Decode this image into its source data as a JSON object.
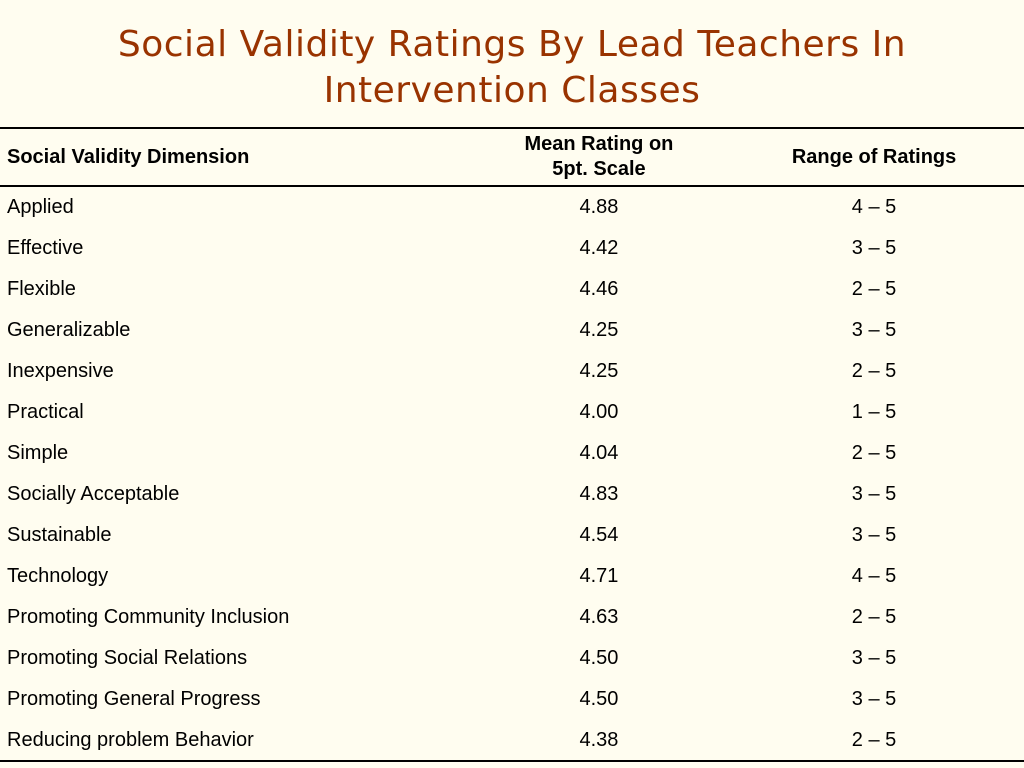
{
  "slide": {
    "title_line1": "Social Validity Ratings By Lead Teachers In",
    "title_line2": "Intervention Classes"
  },
  "table": {
    "headers": {
      "dimension": "Social Validity Dimension",
      "mean_line1": "Mean Rating on",
      "mean_line2": "5pt. Scale",
      "range": "Range of Ratings"
    },
    "rows": [
      {
        "dimension": "Applied",
        "mean": "4.88",
        "range": "4 – 5"
      },
      {
        "dimension": "Effective",
        "mean": "4.42",
        "range": "3 – 5"
      },
      {
        "dimension": "Flexible",
        "mean": "4.46",
        "range": "2 – 5"
      },
      {
        "dimension": "Generalizable",
        "mean": "4.25",
        "range": "3 – 5"
      },
      {
        "dimension": "Inexpensive",
        "mean": "4.25",
        "range": "2 – 5"
      },
      {
        "dimension": "Practical",
        "mean": "4.00",
        "range": "1 – 5"
      },
      {
        "dimension": "Simple",
        "mean": "4.04",
        "range": "2 – 5"
      },
      {
        "dimension": "Socially Acceptable",
        "mean": "4.83",
        "range": "3 – 5"
      },
      {
        "dimension": "Sustainable",
        "mean": "4.54",
        "range": "3 – 5"
      },
      {
        "dimension": "Technology",
        "mean": "4.71",
        "range": "4 – 5"
      },
      {
        "dimension": "Promoting Community Inclusion",
        "mean": "4.63",
        "range": "2 – 5"
      },
      {
        "dimension": "Promoting Social Relations",
        "mean": "4.50",
        "range": "3 – 5"
      },
      {
        "dimension": "Promoting General Progress",
        "mean": "4.50",
        "range": "3 – 5"
      },
      {
        "dimension": "Reducing problem Behavior",
        "mean": "4.38",
        "range": "2 – 5"
      }
    ]
  },
  "colors": {
    "title": "#993300",
    "background": "#fffdf0",
    "text": "#000000"
  }
}
